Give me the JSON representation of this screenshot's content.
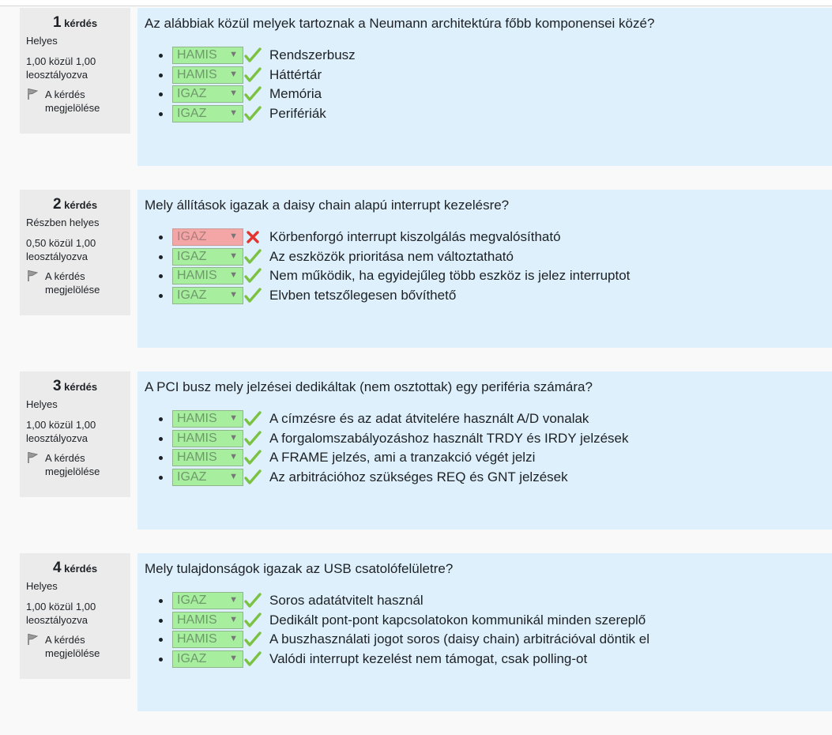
{
  "questions": [
    {
      "number": "1",
      "label": "kérdés",
      "state": "Helyes",
      "grade": "1,00 közül 1,00 leosztályozva",
      "flag_label": "A kérdés megjelölése",
      "text": "Az alábbiak közül melyek tartoznak a Neumann architektúra főbb komponensei közé?",
      "answers": [
        {
          "select": "HAMIS",
          "correct": true,
          "text": "Rendszerbusz"
        },
        {
          "select": "HAMIS",
          "correct": true,
          "text": "Háttértár"
        },
        {
          "select": "IGAZ",
          "correct": true,
          "text": "Memória"
        },
        {
          "select": "IGAZ",
          "correct": true,
          "text": "Perifériák"
        }
      ]
    },
    {
      "number": "2",
      "label": "kérdés",
      "state": "Részben helyes",
      "grade": "0,50 közül 1,00 leosztályozva",
      "flag_label": "A kérdés megjelölése",
      "text": "Mely állítások igazak a daisy chain alapú interrupt kezelésre?",
      "answers": [
        {
          "select": "IGAZ",
          "correct": false,
          "text": "Körbenforgó interrupt kiszolgálás megvalósítható"
        },
        {
          "select": "IGAZ",
          "correct": true,
          "text": "Az eszközök prioritása nem változtatható"
        },
        {
          "select": "HAMIS",
          "correct": true,
          "text": "Nem működik, ha egyidejűleg több eszköz is jelez interruptot"
        },
        {
          "select": "IGAZ",
          "correct": true,
          "text": "Elvben tetszőlegesen bővíthető"
        }
      ]
    },
    {
      "number": "3",
      "label": "kérdés",
      "state": "Helyes",
      "grade": "1,00 közül 1,00 leosztályozva",
      "flag_label": "A kérdés megjelölése",
      "text": "A PCI busz mely jelzései dedikáltak (nem osztottak) egy periféria számára?",
      "answers": [
        {
          "select": "HAMIS",
          "correct": true,
          "text": "A címzésre és az adat átvitelére használt A/D vonalak"
        },
        {
          "select": "HAMIS",
          "correct": true,
          "text": "A forgalomszabályozáshoz használt TRDY és IRDY jelzések"
        },
        {
          "select": "HAMIS",
          "correct": true,
          "text": "A FRAME jelzés, ami a tranzakció végét jelzi"
        },
        {
          "select": "IGAZ",
          "correct": true,
          "text": "Az arbitrációhoz szükséges REQ és GNT jelzések"
        }
      ]
    },
    {
      "number": "4",
      "label": "kérdés",
      "state": "Helyes",
      "grade": "1,00 közül 1,00 leosztályozva",
      "flag_label": "A kérdés megjelölése",
      "text": "Mely tulajdonságok igazak az USB csatolófelületre?",
      "answers": [
        {
          "select": "IGAZ",
          "correct": true,
          "text": "Soros adatátvitelt használ"
        },
        {
          "select": "HAMIS",
          "correct": true,
          "text": "Dedikált pont-pont kapcsolatokon kommunikál minden szereplő"
        },
        {
          "select": "HAMIS",
          "correct": true,
          "text": "A buszhasználati jogot soros (daisy chain) arbitrációval döntik el"
        },
        {
          "select": "IGAZ",
          "correct": true,
          "text": "Valódi interrupt kezelést nem támogat, csak polling-ot"
        }
      ]
    }
  ],
  "colors": {
    "correct_select_bg": "#a8ee9f",
    "wrong_select_bg": "#f4a6a6",
    "check_green": "#7cc242",
    "cross_red": "#e3342f",
    "content_bg": "#def0fb",
    "info_bg": "#ebebeb"
  },
  "icons": {
    "correct": "checkmark-icon",
    "incorrect": "cross-icon",
    "flag": "flag-icon",
    "dropdown": "chevron-down-icon"
  }
}
